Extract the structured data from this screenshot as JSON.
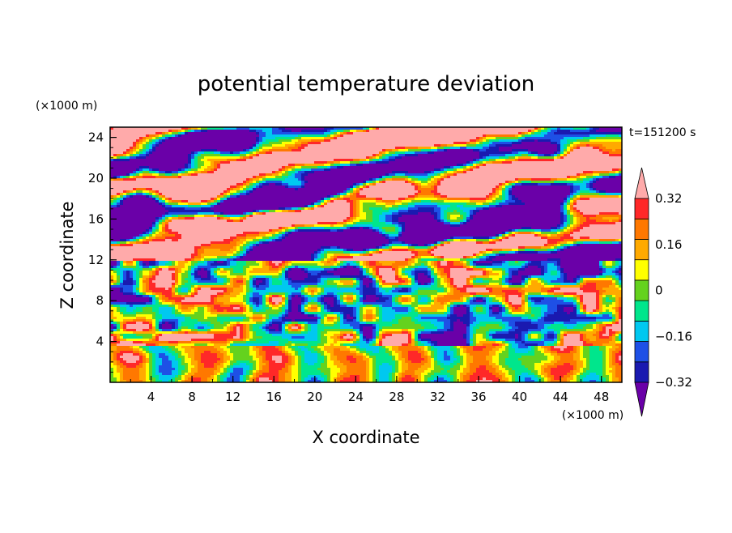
{
  "chart_data": {
    "type": "heatmap",
    "title": "potential temperature deviation",
    "xlabel": "X coordinate",
    "ylabel": "Z coordinate",
    "x_unit": "(×1000 m)",
    "y_unit": "(×1000 m)",
    "time_label": "t=151200 s",
    "xlim": [
      0,
      50
    ],
    "ylim": [
      0,
      25
    ],
    "x_ticks": [
      4,
      8,
      12,
      16,
      20,
      24,
      28,
      32,
      36,
      40,
      44,
      48
    ],
    "y_ticks": [
      4,
      8,
      12,
      16,
      20,
      24
    ],
    "grid": false,
    "colorbar": {
      "placement": "right",
      "extend": "both",
      "levels": [
        -0.4,
        -0.32,
        -0.24,
        -0.16,
        -0.08,
        0,
        0.08,
        0.16,
        0.24,
        0.32,
        0.4
      ],
      "tick_labels": [
        "0.32",
        "0.16",
        "0",
        "−0.16",
        "−0.32"
      ],
      "tick_values": [
        0.32,
        0.16,
        0,
        -0.16,
        -0.32
      ],
      "colors": [
        "#6a00a8",
        "#1a1ab0",
        "#1e50e6",
        "#00c8f0",
        "#00e68c",
        "#64d21e",
        "#ffff00",
        "#ffaa00",
        "#ff7800",
        "#ff2828",
        "#ffaaaa"
      ]
    },
    "field_description_bands": [
      {
        "z_range": [
          0,
          3.5
        ],
        "character": "mostly positive near-surface (yellow/orange/cyan mix)"
      },
      {
        "z_range": [
          3.5,
          12
        ],
        "character": "strongly mixed, small-scale alternating +/-"
      },
      {
        "z_range": [
          12,
          25
        ],
        "character": "large alternating layers of strong positive (pink) and strong negative (purple)"
      }
    ]
  }
}
